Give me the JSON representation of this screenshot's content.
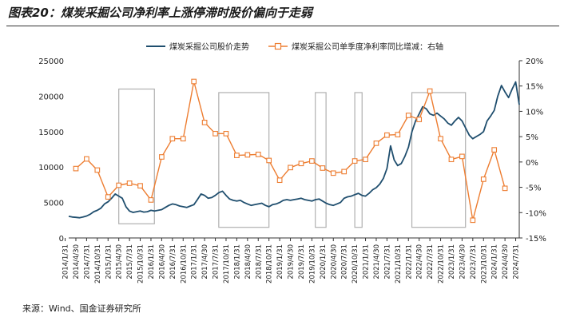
{
  "figure_title": "图表20：煤炭采掘公司净利率上涨停滞时股价偏向于走弱",
  "source_note": "来源：Wind、国金证券研究所",
  "colors": {
    "price_line": "#1f4e6e",
    "margin_line": "#ed7d31",
    "highlight_box": "#b0b0b0",
    "axis": "#333333",
    "title_rule": "#333333"
  },
  "chart_data": {
    "type": "line",
    "grid": false,
    "legend_position": "top",
    "x_axis": {
      "tick_labels": [
        "2014/1/31",
        "2014/4/30",
        "2014/7/31",
        "2014/10/31",
        "2015/1/31",
        "2015/4/30",
        "2015/7/31",
        "2015/10/31",
        "2016/1/31",
        "2016/4/30",
        "2016/7/31",
        "2016/10/31",
        "2017/1/31",
        "2017/4/30",
        "2017/7/31",
        "2017/10/31",
        "2018/1/31",
        "2018/4/30",
        "2018/7/31",
        "2018/10/31",
        "2019/1/31",
        "2019/4/30",
        "2019/7/31",
        "2019/10/31",
        "2020/1/31",
        "2020/4/30",
        "2020/7/31",
        "2020/10/31",
        "2021/1/31",
        "2021/4/30",
        "2021/7/31",
        "2021/10/31",
        "2022/1/31",
        "2022/4/30",
        "2022/7/31",
        "2022/10/31",
        "2023/1/31",
        "2023/4/30",
        "2023/7/31",
        "2023/10/31",
        "2024/1/31",
        "2024/4/30",
        "2024/7/31"
      ],
      "range": [
        2014.083,
        2024.583
      ]
    },
    "y_left": {
      "ylim": [
        0,
        25000
      ],
      "ticks": [
        "0",
        "5000",
        "10000",
        "15000",
        "20000",
        "25000"
      ]
    },
    "y_right": {
      "ylim": [
        -15,
        20
      ],
      "ticks": [
        "-15%",
        "-10%",
        "-5%",
        "0%",
        "5%",
        "10%",
        "15%",
        "20%"
      ]
    },
    "highlight_periods": [
      {
        "x": [
          2015.25,
          2016.08
        ],
        "y_left": [
          2000,
          21000
        ]
      },
      {
        "x": [
          2017.58,
          2018.75
        ],
        "y_left": [
          1500,
          20500
        ]
      },
      {
        "x": [
          2019.83,
          2020.08
        ],
        "y_left": [
          1500,
          20500
        ]
      },
      {
        "x": [
          2020.75,
          2020.92
        ],
        "y_left": [
          1500,
          20500
        ]
      },
      {
        "x": [
          2022.08,
          2023.33
        ],
        "y_left": [
          1500,
          20500
        ]
      }
    ],
    "series": [
      {
        "name": "煤炭采掘公司股价走势",
        "axis": "left",
        "x": [
          2014.083,
          2014.167,
          2014.25,
          2014.333,
          2014.417,
          2014.5,
          2014.583,
          2014.667,
          2014.75,
          2014.833,
          2014.917,
          2015.0,
          2015.083,
          2015.167,
          2015.25,
          2015.333,
          2015.417,
          2015.5,
          2015.583,
          2015.667,
          2015.75,
          2015.833,
          2015.917,
          2016.0,
          2016.083,
          2016.167,
          2016.25,
          2016.333,
          2016.417,
          2016.5,
          2016.583,
          2016.667,
          2016.75,
          2016.833,
          2016.917,
          2017.0,
          2017.083,
          2017.167,
          2017.25,
          2017.333,
          2017.417,
          2017.5,
          2017.583,
          2017.667,
          2017.75,
          2017.833,
          2017.917,
          2018.0,
          2018.083,
          2018.167,
          2018.25,
          2018.333,
          2018.417,
          2018.5,
          2018.583,
          2018.667,
          2018.75,
          2018.833,
          2018.917,
          2019.0,
          2019.083,
          2019.167,
          2019.25,
          2019.333,
          2019.417,
          2019.5,
          2019.583,
          2019.667,
          2019.75,
          2019.833,
          2019.917,
          2020.0,
          2020.083,
          2020.167,
          2020.25,
          2020.333,
          2020.417,
          2020.5,
          2020.583,
          2020.667,
          2020.75,
          2020.833,
          2020.917,
          2021.0,
          2021.083,
          2021.167,
          2021.25,
          2021.333,
          2021.417,
          2021.5,
          2021.583,
          2021.667,
          2021.75,
          2021.833,
          2021.917,
          2022.0,
          2022.083,
          2022.167,
          2022.25,
          2022.333,
          2022.417,
          2022.5,
          2022.583,
          2022.667,
          2022.75,
          2022.833,
          2022.917,
          2023.0,
          2023.083,
          2023.167,
          2023.25,
          2023.333,
          2023.417,
          2023.5,
          2023.583,
          2023.667,
          2023.75,
          2023.833,
          2023.917,
          2024.0,
          2024.083,
          2024.167,
          2024.25,
          2024.333,
          2024.417,
          2024.5,
          2024.583
        ],
        "values": [
          3050,
          2950,
          2900,
          2850,
          2950,
          3100,
          3350,
          3700,
          3900,
          4200,
          4800,
          5100,
          5600,
          6200,
          5900,
          5600,
          4400,
          3800,
          3600,
          3700,
          3800,
          3650,
          3700,
          3900,
          3800,
          3900,
          4000,
          4300,
          4600,
          4800,
          4700,
          4500,
          4400,
          4300,
          4500,
          4700,
          5400,
          6200,
          6000,
          5600,
          5700,
          6000,
          6400,
          6600,
          6000,
          5500,
          5300,
          5200,
          5300,
          5000,
          4800,
          4600,
          4700,
          4800,
          4900,
          4600,
          4400,
          4700,
          4800,
          5000,
          5300,
          5400,
          5300,
          5400,
          5500,
          5600,
          5400,
          5300,
          5200,
          5400,
          5500,
          5200,
          4900,
          4700,
          4600,
          4800,
          5000,
          5600,
          5800,
          5900,
          6100,
          6300,
          6000,
          5900,
          6300,
          6800,
          7100,
          7600,
          8400,
          9800,
          13000,
          11000,
          10200,
          10500,
          11500,
          12800,
          15000,
          16500,
          17500,
          18500,
          18200,
          17500,
          17300,
          17600,
          17200,
          16800,
          16200,
          15900,
          16500,
          17000,
          16500,
          15500,
          14500,
          14000,
          14300,
          14600,
          15000,
          16500,
          17200,
          18000,
          20000,
          21500,
          20600,
          19800,
          21000,
          22000,
          18800
        ]
      },
      {
        "name": "煤炭采掘公司单季度净利率同比增减：右轴",
        "axis": "right",
        "x": [
          2014.25,
          2014.5,
          2014.75,
          2015.0,
          2015.25,
          2015.5,
          2015.75,
          2016.0,
          2016.25,
          2016.5,
          2016.75,
          2017.0,
          2017.25,
          2017.5,
          2017.75,
          2018.0,
          2018.25,
          2018.5,
          2018.75,
          2019.0,
          2019.25,
          2019.5,
          2019.75,
          2020.0,
          2020.25,
          2020.5,
          2020.75,
          2021.0,
          2021.25,
          2021.5,
          2021.75,
          2022.0,
          2022.25,
          2022.5,
          2022.75,
          2023.0,
          2023.25,
          2023.5,
          2023.75,
          2024.0,
          2024.25
        ],
        "values": [
          -1.3,
          0.6,
          -1.6,
          -6.9,
          -4.6,
          -4.2,
          -4.7,
          -7.5,
          1.0,
          4.6,
          4.6,
          15.9,
          7.8,
          5.6,
          5.6,
          1.3,
          1.4,
          1.5,
          0.3,
          -3.6,
          -1.1,
          -0.3,
          0.2,
          -1.2,
          -2.2,
          -1.9,
          0.2,
          0.5,
          3.7,
          5.3,
          5.4,
          9.2,
          8.4,
          14.0,
          4.6,
          0.5,
          1.1,
          -11.5,
          -3.4,
          2.4,
          -5.2
        ]
      }
    ]
  }
}
